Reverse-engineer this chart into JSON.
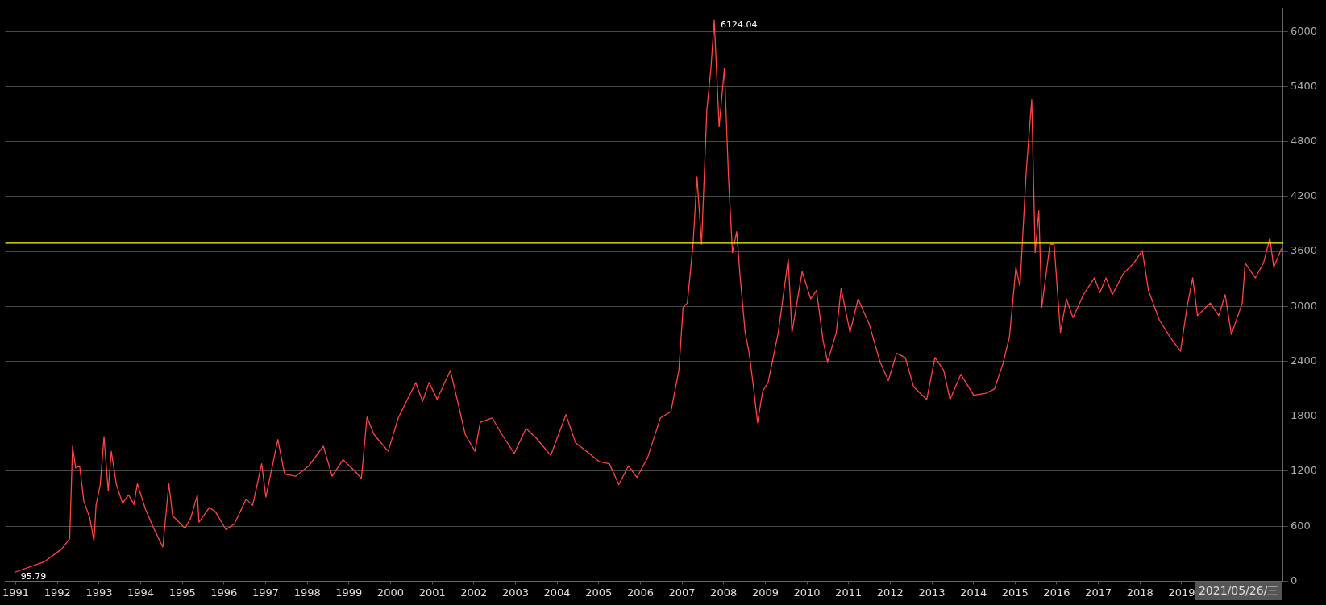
{
  "chart_data": {
    "type": "line",
    "grid": "y",
    "legend": false,
    "marker": "none",
    "line_style": "solid",
    "xlim": [
      "1990-10-01",
      "2021-06-10"
    ],
    "ylim": [
      0,
      6250
    ],
    "xticks": [
      "1991",
      "1992",
      "1993",
      "1994",
      "1995",
      "1996",
      "1997",
      "1998",
      "1999",
      "2000",
      "2001",
      "2002",
      "2003",
      "2004",
      "2005",
      "2006",
      "2007",
      "2008",
      "2009",
      "2010",
      "2011",
      "2012",
      "2013",
      "2014",
      "2015",
      "2016",
      "2017",
      "2018",
      "2019"
    ],
    "yticks": [
      0,
      600,
      1200,
      1800,
      2400,
      3000,
      3600,
      4200,
      4800,
      5400,
      6000
    ],
    "ref_lines": [
      {
        "axis": "y",
        "value": 3690,
        "color": "#ffff00"
      }
    ],
    "annotations": [
      {
        "text": "6124.04",
        "x": "2007-10-11",
        "y": 6124.04
      },
      {
        "text": "95.79",
        "x": "1990-12-20",
        "y": 95.79
      },
      "2021/05/26/三"
    ],
    "x": [
      "1990-12-20",
      "1991-09-12",
      "1992-02-06",
      "1992-04-18",
      "1992-05-13",
      "1992-06-09",
      "1992-07-14",
      "1992-08-20",
      "1992-10-11",
      "1992-11-17",
      "1992-12-05",
      "1993-01-11",
      "1993-02-13",
      "1993-03-22",
      "1993-04-18",
      "1993-06-02",
      "1993-07-25",
      "1993-09-16",
      "1993-11-03",
      "1993-12-02",
      "1994-02-13",
      "1994-04-25",
      "1994-07-14",
      "1994-09-05",
      "1994-10-08",
      "1995-01-25",
      "1995-03-16",
      "1995-05-13",
      "1995-05-27",
      "1995-08-27",
      "1995-10-18",
      "1996-01-18",
      "1996-04-01",
      "1996-07-14",
      "1996-09-09",
      "1996-11-27",
      "1997-01-03",
      "1997-04-18",
      "1997-06-16",
      "1997-09-22",
      "1998-01-14",
      "1998-05-23",
      "1998-08-07",
      "1998-11-10",
      "1999-02-23",
      "1999-04-21",
      "1999-06-09",
      "1999-08-10",
      "1999-12-12",
      "2000-03-09",
      "2000-08-10",
      "2000-10-08",
      "2000-12-05",
      "2001-02-13",
      "2001-06-09",
      "2001-08-03",
      "2001-10-18",
      "2002-01-11",
      "2002-02-27",
      "2002-06-12",
      "2002-09-05",
      "2002-12-22",
      "2003-04-04",
      "2003-07-08",
      "2003-11-07",
      "2004-03-19",
      "2004-06-12",
      "2004-09-16",
      "2005-01-08",
      "2005-04-04",
      "2005-06-26",
      "2005-09-19",
      "2005-12-02",
      "2006-03-06",
      "2006-06-26",
      "2006-09-26",
      "2006-12-05",
      "2007-01-11",
      "2007-02-17",
      "2007-04-08",
      "2007-05-13",
      "2007-06-22",
      "2007-08-07",
      "2007-09-12",
      "2007-10-11",
      "2007-11-23",
      "2008-01-08",
      "2008-02-13",
      "2008-03-19",
      "2008-04-25",
      "2008-05-23",
      "2008-07-08",
      "2008-08-13",
      "2008-09-19",
      "2008-10-25",
      "2008-12-09",
      "2009-01-25",
      "2009-04-25",
      "2009-07-21",
      "2009-08-23",
      "2009-11-20",
      "2010-02-03",
      "2010-03-26",
      "2010-05-23",
      "2010-07-01",
      "2010-09-16",
      "2010-10-28",
      "2011-01-14",
      "2011-03-26",
      "2011-07-01",
      "2011-10-04",
      "2011-12-16",
      "2012-02-27",
      "2012-05-13",
      "2012-07-25",
      "2012-11-17",
      "2013-01-28",
      "2013-04-14",
      "2013-06-09",
      "2013-09-12",
      "2014-01-03",
      "2014-04-21",
      "2014-07-04",
      "2014-09-16",
      "2014-11-13",
      "2015-01-08",
      "2015-02-13",
      "2015-04-08",
      "2015-05-27",
      "2015-06-26",
      "2015-07-28",
      "2015-08-23",
      "2015-11-03",
      "2015-12-09",
      "2016-02-03",
      "2016-03-26",
      "2016-05-23",
      "2016-08-23",
      "2016-11-27",
      "2017-01-14",
      "2017-03-09",
      "2017-05-03",
      "2017-08-07",
      "2017-11-07",
      "2018-01-21",
      "2018-03-16",
      "2018-06-19",
      "2018-09-19",
      "2018-12-22",
      "2019-02-17",
      "2019-04-08",
      "2019-05-20",
      "2019-09-09",
      "2019-11-23",
      "2020-01-18",
      "2020-03-12",
      "2020-06-16",
      "2020-07-11",
      "2020-10-08",
      "2020-12-19",
      "2021-02-13",
      "2021-03-19",
      "2021-05-26"
    ],
    "series": [
      {
        "color": "#ff4444",
        "values": [
          95.79,
          214,
          350,
          464,
          1473,
          1236,
          1259,
          873,
          691,
          441,
          827,
          1054,
          1577,
          986,
          1418,
          1054,
          850,
          941,
          836,
          1063,
          782,
          577,
          373,
          1063,
          714,
          577,
          691,
          941,
          645,
          804,
          759,
          564,
          623,
          895,
          827,
          1282,
          918,
          1545,
          1168,
          1145,
          1259,
          1473,
          1145,
          1327,
          1200,
          1123,
          1791,
          1600,
          1418,
          1782,
          2168,
          1963,
          2168,
          1986,
          2300,
          2009,
          1600,
          1418,
          1736,
          1782,
          1600,
          1395,
          1668,
          1554,
          1373,
          1818,
          1509,
          1418,
          1304,
          1282,
          1054,
          1259,
          1132,
          1350,
          1782,
          1850,
          2304,
          2991,
          3037,
          3678,
          4411,
          3678,
          5143,
          5601,
          6124.04,
          4960,
          5601,
          4411,
          3586,
          3815,
          3357,
          2716,
          2487,
          2121,
          1731,
          2075,
          2166,
          2716,
          3517,
          2716,
          3380,
          3082,
          3174,
          2624,
          2395,
          2716,
          3197,
          2716,
          3082,
          2808,
          2395,
          2189,
          2487,
          2441,
          2121,
          1983,
          2441,
          2304,
          1983,
          2258,
          2029,
          2052,
          2098,
          2372,
          2670,
          3426,
          3220,
          4456,
          5258,
          3586,
          4044,
          2991,
          3678,
          3678,
          2716,
          3082,
          2876,
          3128,
          3311,
          3151,
          3311,
          3128,
          3357,
          3472,
          3609,
          3174,
          2853,
          2670,
          2510,
          2991,
          3311,
          2899,
          3037,
          2899,
          3128,
          2693,
          3037,
          3472,
          3311,
          3472,
          3746,
          3426,
          3632
        ]
      }
    ]
  }
}
